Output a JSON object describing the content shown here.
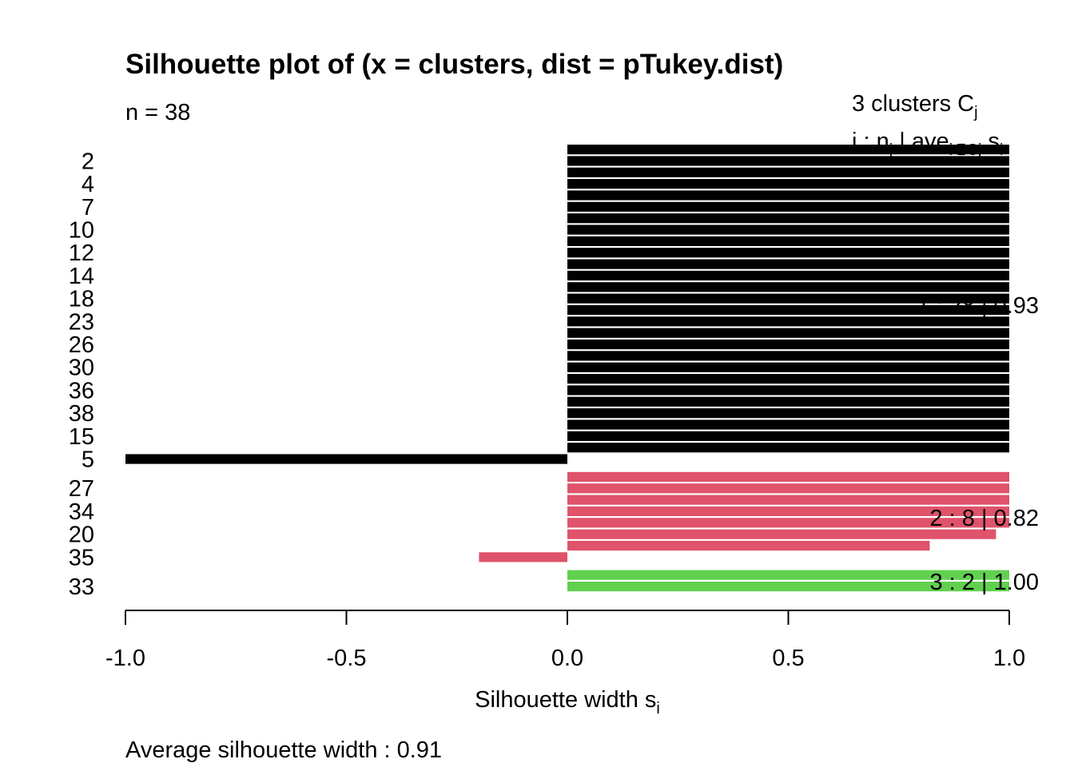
{
  "chart_data": {
    "type": "bar",
    "orientation": "horizontal",
    "title": "Silhouette plot of (x = clusters, dist = pTukey.dist)",
    "n_label": "n = 38",
    "header_line1": {
      "prefix": "3  clusters  C",
      "sub": "j"
    },
    "header_line2": {
      "prefix": "j :  n",
      "sub1": "j",
      "mid": " | ave",
      "sub2": "i∈Cj",
      "end": "  s",
      "sub3": "i"
    },
    "xlabel": {
      "main": "Silhouette width s",
      "sub": "i"
    },
    "footer": "Average silhouette width :  0.91",
    "xlim": [
      -1.0,
      1.0
    ],
    "x_ticks": [
      "-1.0",
      "-0.5",
      "0.0",
      "0.5",
      "1.0"
    ],
    "x_tick_values": [
      -1.0,
      -0.5,
      0.0,
      0.5,
      1.0
    ],
    "colors": {
      "1": "#000000",
      "2": "#DF536B",
      "3": "#61D04F"
    },
    "clusters": [
      {
        "id": 1,
        "label": "1 :  28  |  0.93",
        "n": 28,
        "ave": 0.93,
        "tick_labels": [
          "2",
          "4",
          "7",
          "10",
          "12",
          "14",
          "18",
          "23",
          "26",
          "30",
          "36",
          "38",
          "15",
          "5"
        ],
        "values": [
          1,
          1,
          1,
          1,
          1,
          1,
          1,
          1,
          1,
          1,
          1,
          1,
          1,
          1,
          1,
          1,
          1,
          1,
          1,
          1,
          1,
          1,
          1,
          1,
          1,
          1,
          1,
          -1.0
        ]
      },
      {
        "id": 2,
        "label": "2 :   8  |  0.82",
        "n": 8,
        "ave": 0.82,
        "tick_labels": [
          "27",
          "34",
          "20",
          "35"
        ],
        "values": [
          1.0,
          1.0,
          1.0,
          1.0,
          1.0,
          0.97,
          0.82,
          -0.2
        ]
      },
      {
        "id": 3,
        "label": "3 :   2  |  1.00",
        "n": 2,
        "ave": 1.0,
        "tick_labels": [
          "33"
        ],
        "values": [
          1.0,
          1.0
        ]
      }
    ]
  }
}
